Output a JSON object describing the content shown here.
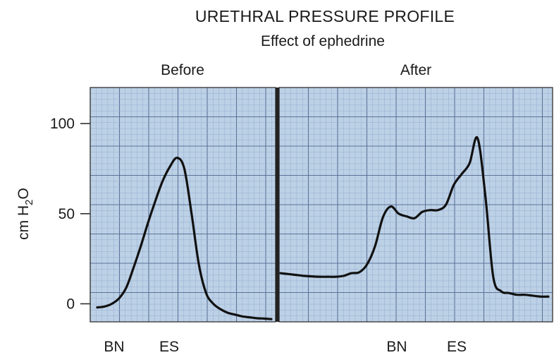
{
  "chart_data": [
    {
      "type": "line",
      "title": "URETHRAL PRESSURE PROFILE",
      "subtitle": "Effect of ephedrine",
      "panel": "Before",
      "ylabel": "cm H2O",
      "ylim": [
        -10,
        120
      ],
      "yticks": [
        0,
        50,
        100
      ],
      "markers": [
        "BN",
        "ES"
      ],
      "series": [
        {
          "values": [
            -2,
            -1.5,
            0,
            3,
            9,
            20,
            32,
            45,
            57,
            68,
            76,
            81,
            75,
            50,
            22,
            6,
            0,
            -3,
            -5,
            -6,
            -7,
            -7.5,
            -8,
            -8.2,
            -8.5
          ]
        }
      ]
    },
    {
      "type": "line",
      "panel": "After",
      "ylim": [
        -10,
        120
      ],
      "markers": [
        "BN",
        "ES"
      ],
      "series": [
        {
          "values": [
            17,
            16.5,
            16,
            15.5,
            15.2,
            15,
            15,
            15,
            15.5,
            17,
            17.5,
            22,
            32,
            48,
            54,
            50,
            48.5,
            47.5,
            51,
            52,
            52,
            55,
            66,
            72,
            78,
            92,
            60,
            15,
            7,
            6,
            5,
            5,
            4.5,
            4,
            4
          ]
        }
      ]
    }
  ],
  "colors": {
    "grid_bg": "#bdd1e6",
    "grid_minor": "#93add0",
    "grid_major": "#5b7399",
    "curve": "#111111"
  }
}
